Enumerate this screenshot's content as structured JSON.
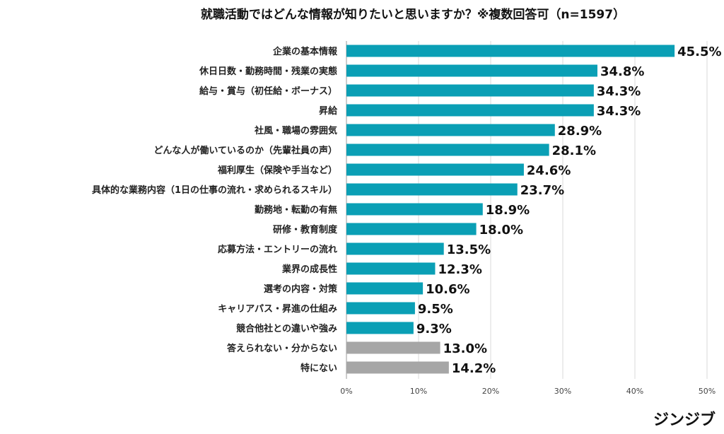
{
  "chart_data": {
    "type": "bar",
    "orientation": "horizontal",
    "title": "就職活動ではどんな情報が知りたいと思いますか？※複数回答可（n=1597）",
    "categories": [
      "企業の基本情報",
      "休日日数・勤務時間・残業の実態",
      "給与・賞与（初任給・ボーナス）",
      "昇給",
      "社風・職場の雰囲気",
      "どんな人が働いているのか（先輩社員の声）",
      "福利厚生（保険や手当など）",
      "具体的な業務内容（1日の仕事の流れ・求められるスキル）",
      "勤務地・転勤の有無",
      "研修・教育制度",
      "応募方法・エントリーの流れ",
      "業界の成長性",
      "選考の内容・対策",
      "キャリアパス・昇進の仕組み",
      "競合他社との違いや強み",
      "答えられない・分からない",
      "特にない"
    ],
    "values": [
      45.5,
      34.8,
      34.3,
      34.3,
      28.9,
      28.1,
      24.6,
      23.7,
      18.9,
      18.0,
      13.5,
      12.3,
      10.6,
      9.5,
      9.3,
      13.0,
      14.2
    ],
    "value_labels": [
      "45.5%",
      "34.8%",
      "34.3%",
      "34.3%",
      "28.9%",
      "28.1%",
      "24.6%",
      "23.7%",
      "18.9%",
      "18.0%",
      "13.5%",
      "12.3%",
      "10.6%",
      "9.5%",
      "9.3%",
      "13.0%",
      "14.2%"
    ],
    "bar_colors": [
      "#0a9fb5",
      "#0a9fb5",
      "#0a9fb5",
      "#0a9fb5",
      "#0a9fb5",
      "#0a9fb5",
      "#0a9fb5",
      "#0a9fb5",
      "#0a9fb5",
      "#0a9fb5",
      "#0a9fb5",
      "#0a9fb5",
      "#0a9fb5",
      "#0a9fb5",
      "#0a9fb5",
      "#a6a6a6",
      "#a6a6a6"
    ],
    "xlim": [
      0,
      50
    ],
    "x_ticks": [
      0,
      10,
      20,
      30,
      40,
      50
    ],
    "x_tick_labels": [
      "0%",
      "10%",
      "20%",
      "30%",
      "40%",
      "50%"
    ],
    "grid": true,
    "xlabel": "",
    "ylabel": ""
  },
  "logo": "ジンジブ"
}
